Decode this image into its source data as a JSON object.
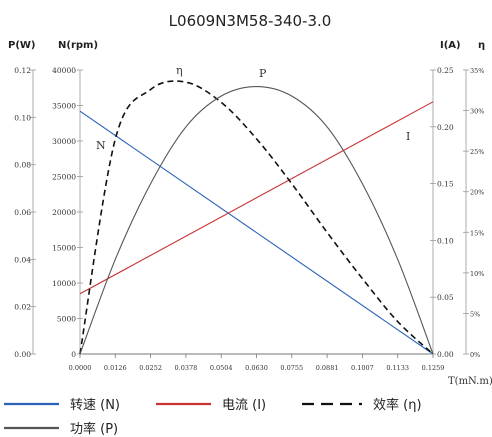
{
  "chart_data": {
    "type": "line",
    "title": "L0609N3M58-340-3.0",
    "xlabel": "T(mN.m)",
    "x_ticks": [
      "0.0000",
      "0.0126",
      "0.0252",
      "0.0378",
      "0.0504",
      "0.0630",
      "0.0755",
      "0.0881",
      "0.1007",
      "0.1133",
      "0.1259"
    ],
    "xlim": [
      0,
      0.1259
    ],
    "axes": {
      "power": {
        "label": "P(W)",
        "ticks": [
          "0.00",
          "0.02",
          "0.04",
          "0.06",
          "0.08",
          "0.10",
          "0.12"
        ],
        "lim": [
          0,
          0.12
        ]
      },
      "speed": {
        "label": "N(rpm)",
        "ticks": [
          "0",
          "5000",
          "10000",
          "15000",
          "20000",
          "25000",
          "30000",
          "35000",
          "40000"
        ],
        "lim": [
          0,
          40000
        ]
      },
      "current": {
        "label": "I(A)",
        "ticks": [
          "0.00",
          "0.05",
          "0.10",
          "0.15",
          "0.20",
          "0.25"
        ],
        "lim": [
          0,
          0.25
        ]
      },
      "efficiency": {
        "label": "η",
        "ticks": [
          "0%",
          "5%",
          "10%",
          "15%",
          "20%",
          "25%",
          "30%",
          "35%"
        ],
        "lim": [
          0,
          35
        ]
      }
    },
    "series": [
      {
        "name": "N",
        "legend": "转速 (N)",
        "axis": "speed",
        "color": "#2a62b8",
        "style": "solid",
        "x": [
          0,
          0.1259
        ],
        "y": [
          34200,
          0
        ]
      },
      {
        "name": "I",
        "legend": "电流 (I)",
        "axis": "current",
        "color": "#c83232",
        "style": "solid",
        "x": [
          0,
          0.1259
        ],
        "y": [
          0.053,
          0.222
        ]
      },
      {
        "name": "η",
        "legend": "效率 (η)",
        "axis": "efficiency",
        "color": "#111111",
        "style": "dashed",
        "x": [
          0,
          0.0126,
          0.0252,
          0.0378,
          0.0504,
          0.063,
          0.0755,
          0.0881,
          0.1007,
          0.1133,
          0.1259
        ],
        "y": [
          0,
          26.5,
          32.6,
          33.5,
          31.0,
          26.5,
          21.0,
          15.0,
          9.3,
          4.0,
          0
        ]
      },
      {
        "name": "P",
        "legend": "功率 (P)",
        "axis": "power",
        "color": "#555555",
        "style": "solid",
        "x": [
          0,
          0.0126,
          0.0252,
          0.0378,
          0.0504,
          0.063,
          0.0755,
          0.0881,
          0.1007,
          0.1133,
          0.1259
        ],
        "y": [
          0,
          0.04,
          0.072,
          0.096,
          0.109,
          0.113,
          0.109,
          0.096,
          0.072,
          0.04,
          0
        ]
      }
    ],
    "curve_labels": [
      "N",
      "η",
      "P",
      "I"
    ],
    "legend_placement": "bottom",
    "grid": false
  }
}
